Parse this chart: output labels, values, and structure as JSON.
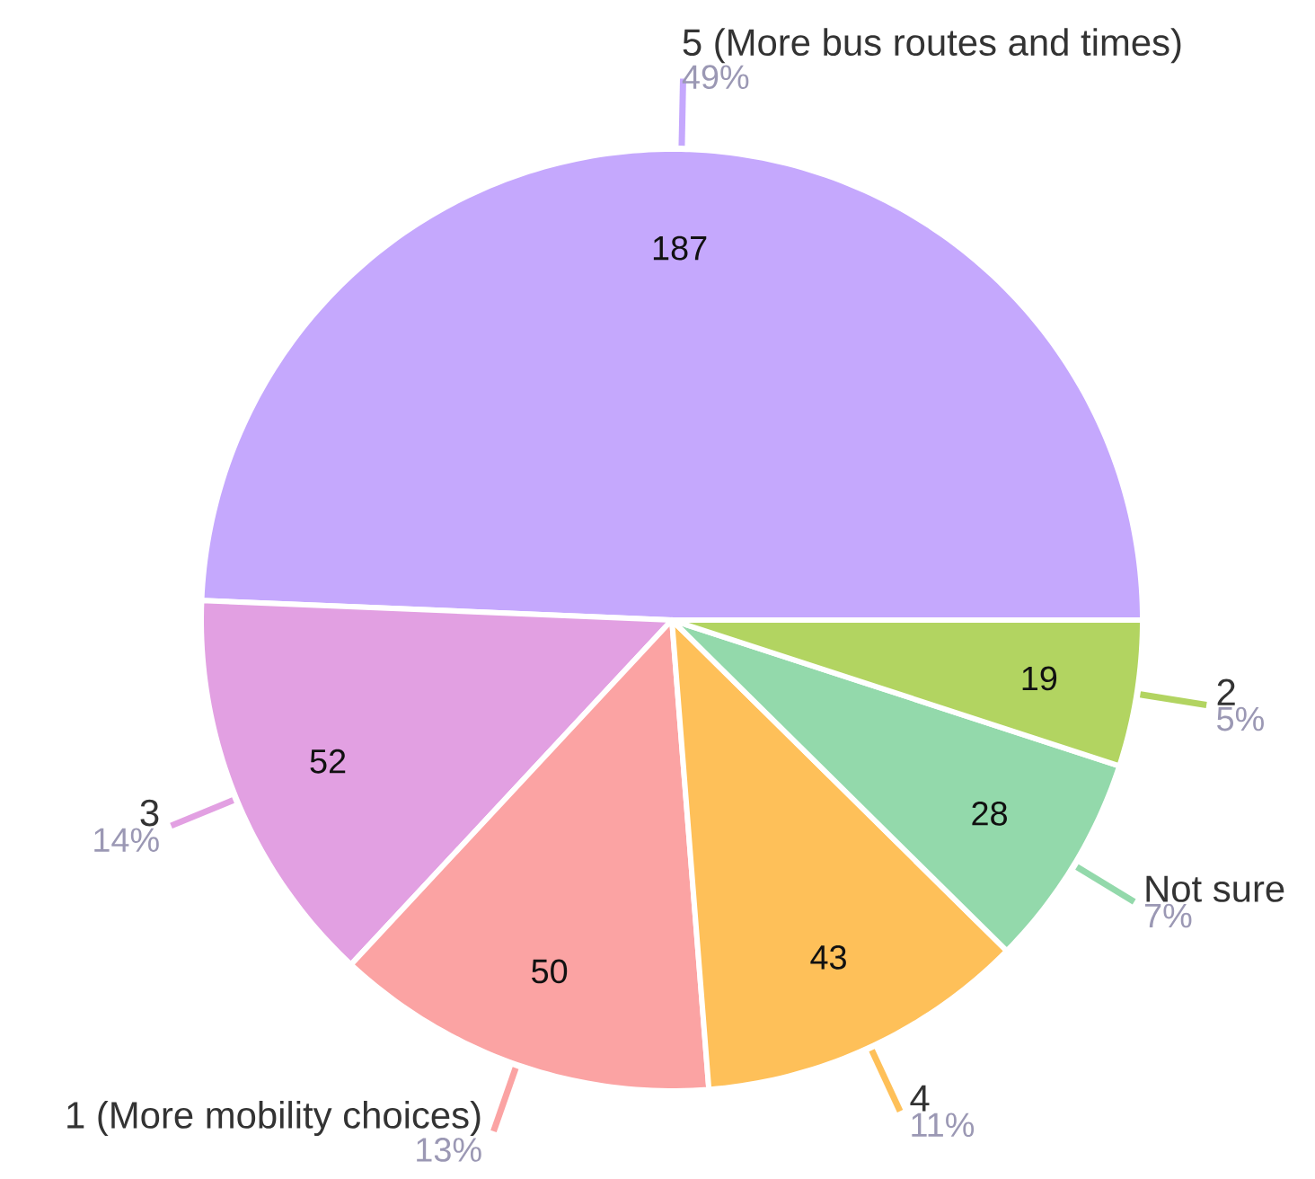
{
  "chart_data": {
    "type": "pie",
    "categories": [
      "5 (More bus routes and times)",
      "3",
      "1 (More mobility choices)",
      "4",
      "Not sure",
      "2"
    ],
    "values": [
      187,
      52,
      50,
      43,
      28,
      19
    ],
    "colors": [
      "#c5a8fd",
      "#e2a0e2",
      "#fba3a3",
      "#fec059",
      "#93d9ab",
      "#b2d461"
    ],
    "data_labels": true,
    "annotations": [
      {
        "text": "49%",
        "x": "5 (More bus routes and times)"
      },
      {
        "text": "14%",
        "x": "3"
      },
      {
        "text": "13%",
        "x": "1 (More mobility choices)"
      },
      {
        "text": "11%",
        "x": "4"
      },
      {
        "text": "7%",
        "x": "Not sure"
      },
      {
        "text": "5%",
        "x": "2"
      }
    ]
  }
}
